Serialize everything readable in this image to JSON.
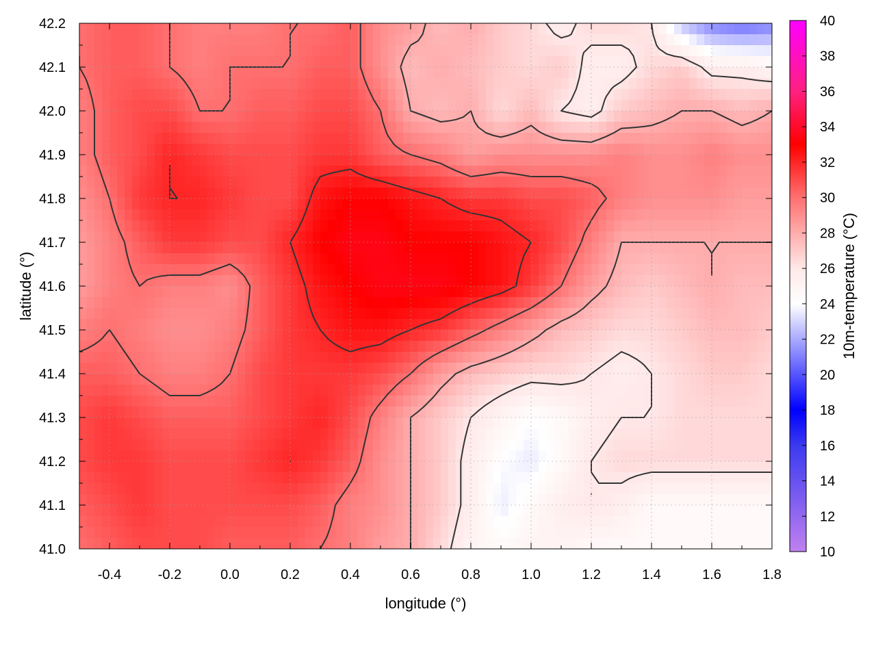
{
  "chart_data": {
    "type": "heatmap",
    "title": "",
    "xlabel": "longitude (°)",
    "ylabel": "latitude (°)",
    "colorbar_label": "10m-temperature (°C)",
    "xlim": [
      -0.5,
      1.8
    ],
    "ylim": [
      41.0,
      42.2
    ],
    "zlim": [
      10,
      40
    ],
    "x_ticks": [
      -0.4,
      -0.2,
      0.0,
      0.2,
      0.4,
      0.6,
      0.8,
      1.0,
      1.2,
      1.4,
      1.6,
      1.8
    ],
    "x_tick_labels": [
      "-0.4",
      "-0.2",
      "0.0",
      "0.2",
      "0.4",
      "0.6",
      "0.8",
      "1.0",
      "1.2",
      "1.4",
      "1.6",
      "1.8"
    ],
    "y_ticks": [
      41.0,
      41.1,
      41.2,
      41.3,
      41.4,
      41.5,
      41.6,
      41.7,
      41.8,
      41.9,
      42.0,
      42.1,
      42.2
    ],
    "y_tick_labels": [
      "41.0",
      "41.1",
      "41.2",
      "41.3",
      "41.4",
      "41.5",
      "41.6",
      "41.7",
      "41.8",
      "41.9",
      "42.0",
      "42.1",
      "42.2"
    ],
    "colorbar_ticks": [
      10,
      12,
      14,
      16,
      18,
      20,
      22,
      24,
      26,
      28,
      30,
      32,
      34,
      36,
      38,
      40
    ],
    "colorbar_tick_labels": [
      "10",
      "12",
      "14",
      "16",
      "18",
      "20",
      "22",
      "24",
      "26",
      "28",
      "30",
      "32",
      "34",
      "36",
      "38",
      "40"
    ],
    "colormap_stops": [
      {
        "value": 10,
        "color": "#c080f0"
      },
      {
        "value": 16,
        "color": "#3a3af0"
      },
      {
        "value": 18,
        "color": "#0000ff"
      },
      {
        "value": 24,
        "color": "#ffffff"
      },
      {
        "value": 26,
        "color": "#ffe8e8"
      },
      {
        "value": 30,
        "color": "#ff7070"
      },
      {
        "value": 33,
        "color": "#ff0000"
      },
      {
        "value": 36,
        "color": "#ff2080"
      },
      {
        "value": 40,
        "color": "#ff00ff"
      }
    ],
    "grid": true,
    "contours": true,
    "contour_color": "#333333",
    "grid_resolution": [
      24,
      13
    ],
    "field_lon_step": 0.1,
    "field_lat_step": 0.1,
    "field_rows_lat_descending": [
      [
        30.0,
        30.5,
        30.5,
        30.0,
        29.5,
        29.5,
        29.5,
        30.0,
        30.0,
        30.5,
        29.0,
        28.5,
        27.5,
        28.0,
        27.0,
        26.5,
        25.5,
        26.5,
        26.5,
        26.0,
        22.5,
        21.0,
        20.5,
        21.0
      ],
      [
        30.0,
        30.5,
        30.5,
        30.0,
        29.5,
        30.0,
        30.0,
        30.0,
        30.5,
        30.5,
        29.0,
        27.5,
        28.0,
        27.5,
        27.0,
        26.5,
        27.0,
        25.5,
        25.5,
        26.5,
        27.0,
        25.5,
        25.5,
        25.0
      ],
      [
        29.5,
        30.5,
        31.0,
        31.0,
        30.0,
        30.0,
        30.5,
        30.5,
        31.0,
        31.0,
        30.0,
        28.0,
        27.5,
        28.0,
        26.5,
        27.5,
        26.0,
        25.5,
        27.0,
        27.5,
        28.0,
        28.0,
        27.5,
        28.0
      ],
      [
        29.5,
        30.5,
        31.0,
        32.0,
        31.5,
        31.0,
        31.0,
        31.0,
        31.5,
        31.5,
        30.5,
        30.0,
        29.5,
        28.5,
        29.0,
        29.0,
        29.0,
        29.0,
        29.5,
        29.0,
        29.0,
        29.5,
        29.0,
        29.0
      ],
      [
        29.0,
        30.0,
        31.5,
        32.0,
        32.0,
        31.5,
        31.0,
        31.0,
        32.5,
        33.0,
        33.0,
        32.5,
        32.0,
        31.5,
        31.5,
        31.0,
        31.0,
        30.5,
        29.5,
        29.0,
        29.0,
        29.0,
        28.5,
        28.5
      ],
      [
        28.5,
        29.5,
        30.5,
        31.5,
        31.5,
        31.0,
        31.0,
        32.0,
        33.0,
        33.5,
        33.5,
        33.0,
        33.0,
        33.0,
        32.5,
        32.0,
        31.0,
        29.5,
        28.0,
        28.0,
        28.0,
        28.0,
        28.0,
        28.0
      ],
      [
        28.5,
        29.5,
        30.0,
        29.5,
        29.5,
        29.0,
        30.5,
        31.5,
        32.5,
        33.0,
        33.5,
        33.5,
        33.5,
        33.0,
        32.5,
        31.5,
        30.0,
        28.5,
        27.5,
        27.0,
        27.5,
        28.0,
        27.5,
        27.5
      ],
      [
        29.5,
        30.0,
        29.5,
        29.0,
        29.0,
        29.5,
        30.5,
        31.5,
        32.0,
        32.5,
        32.5,
        32.0,
        31.5,
        30.5,
        29.5,
        28.5,
        27.5,
        27.0,
        26.5,
        26.5,
        27.0,
        27.5,
        27.5,
        27.0
      ],
      [
        30.5,
        30.5,
        30.0,
        29.5,
        29.5,
        30.0,
        31.0,
        31.5,
        31.5,
        31.5,
        31.0,
        30.0,
        28.5,
        27.5,
        27.0,
        26.5,
        26.5,
        26.0,
        25.5,
        26.0,
        26.5,
        27.0,
        27.0,
        26.5
      ],
      [
        31.0,
        31.5,
        31.0,
        30.5,
        30.5,
        30.5,
        31.0,
        31.5,
        32.0,
        31.0,
        29.5,
        28.0,
        27.0,
        26.0,
        25.0,
        24.0,
        24.5,
        25.5,
        26.0,
        26.0,
        26.5,
        26.5,
        26.5,
        26.5
      ],
      [
        31.0,
        31.5,
        31.5,
        31.0,
        31.0,
        31.0,
        31.5,
        32.0,
        31.5,
        30.5,
        29.0,
        28.0,
        27.0,
        25.5,
        24.0,
        23.5,
        24.5,
        26.0,
        26.5,
        26.5,
        26.5,
        26.5,
        26.5,
        26.5
      ],
      [
        30.5,
        31.0,
        31.5,
        31.0,
        31.0,
        31.0,
        31.0,
        31.0,
        30.5,
        29.5,
        29.0,
        28.0,
        27.0,
        25.5,
        23.5,
        24.5,
        25.5,
        26.0,
        25.5,
        24.5,
        24.5,
        24.5,
        24.5,
        24.5
      ],
      [
        30.0,
        30.5,
        31.0,
        31.0,
        31.0,
        30.5,
        30.5,
        30.5,
        30.0,
        29.5,
        28.5,
        28.0,
        26.5,
        25.0,
        24.5,
        25.0,
        25.0,
        24.5,
        24.5,
        24.5,
        24.5,
        24.5,
        24.5,
        24.5
      ]
    ],
    "contour_levels": [
      26,
      28,
      30,
      32
    ]
  }
}
